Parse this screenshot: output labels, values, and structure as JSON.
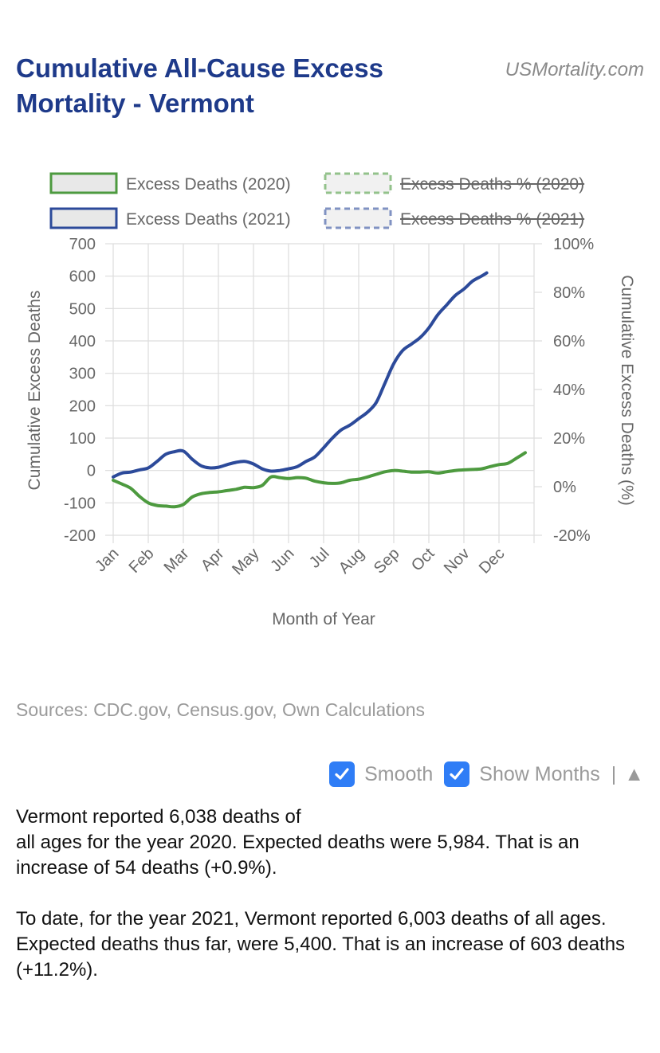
{
  "header": {
    "title": "Cumulative All-Cause Excess Mortality - Vermont",
    "site": "USMortality.com"
  },
  "colors": {
    "green": "#4d9a3f",
    "blue": "#2c4a9a",
    "title": "#1e3a8a"
  },
  "chart_data": {
    "type": "line",
    "xlabel": "Month of Year",
    "ylabel": "Cumulative Excess Deaths",
    "y2label": "Cumulative Excess Deaths (%)",
    "ylim": [
      -200,
      700
    ],
    "y2lim": [
      -20,
      100
    ],
    "yticks": [
      "700",
      "600",
      "500",
      "400",
      "300",
      "200",
      "100",
      "0",
      "-100",
      "-200"
    ],
    "y2ticks": [
      "100%",
      "80%",
      "60%",
      "40%",
      "20%",
      "0%",
      "-20%"
    ],
    "categories": [
      "Jan",
      "Feb",
      "Mar",
      "Apr",
      "May",
      "Jun",
      "Jul",
      "Aug",
      "Sep",
      "Oct",
      "Nov",
      "Dec"
    ],
    "legend": [
      {
        "label": "Excess Deaths (2020)",
        "hidden": false,
        "dashed": false,
        "color": "#4d9a3f"
      },
      {
        "label": "Excess Deaths % (2020)",
        "hidden": true,
        "dashed": true,
        "color": "#4d9a3f"
      },
      {
        "label": "Excess Deaths (2021)",
        "hidden": false,
        "dashed": false,
        "color": "#2c4a9a"
      },
      {
        "label": "Excess Deaths % (2021)",
        "hidden": true,
        "dashed": true,
        "color": "#2c4a9a"
      }
    ],
    "series": [
      {
        "name": "Excess Deaths (2020)",
        "color": "#4d9a3f",
        "x": [
          0,
          0.25,
          0.5,
          0.75,
          1.0,
          1.25,
          1.5,
          1.75,
          2.0,
          2.25,
          2.5,
          2.75,
          3.0,
          3.25,
          3.5,
          3.75,
          4.0,
          4.25,
          4.5,
          4.75,
          5.0,
          5.25,
          5.5,
          5.75,
          6.0,
          6.25,
          6.5,
          6.75,
          7.0,
          7.25,
          7.5,
          7.75,
          8.0,
          8.25,
          8.5,
          8.75,
          9.0,
          9.25,
          9.5,
          9.75,
          10.0,
          10.25,
          10.5,
          10.75,
          11.0,
          11.25,
          11.5,
          11.75
        ],
        "values": [
          -30,
          -42,
          -55,
          -80,
          -100,
          -108,
          -110,
          -112,
          -105,
          -82,
          -72,
          -68,
          -66,
          -62,
          -58,
          -52,
          -53,
          -46,
          -20,
          -22,
          -25,
          -22,
          -24,
          -33,
          -38,
          -40,
          -38,
          -30,
          -27,
          -20,
          -12,
          -4,
          0,
          -2,
          -5,
          -5,
          -4,
          -8,
          -4,
          0,
          2,
          3,
          5,
          12,
          18,
          22,
          38,
          55
        ]
      },
      {
        "name": "Excess Deaths (2021)",
        "color": "#2c4a9a",
        "x": [
          0,
          0.25,
          0.5,
          0.75,
          1.0,
          1.25,
          1.5,
          1.75,
          2.0,
          2.25,
          2.5,
          2.75,
          3.0,
          3.25,
          3.5,
          3.75,
          4.0,
          4.25,
          4.5,
          4.75,
          5.0,
          5.25,
          5.5,
          5.75,
          6.0,
          6.25,
          6.5,
          6.75,
          7.0,
          7.25,
          7.5,
          7.75,
          8.0,
          8.25,
          8.5,
          8.75,
          9.0,
          9.25,
          9.5,
          9.75,
          10.0,
          10.25,
          10.5,
          10.65
        ],
        "values": [
          -20,
          -8,
          -5,
          2,
          8,
          28,
          50,
          58,
          60,
          35,
          15,
          8,
          10,
          18,
          25,
          28,
          20,
          5,
          -2,
          0,
          5,
          12,
          28,
          42,
          70,
          100,
          125,
          140,
          160,
          180,
          210,
          270,
          330,
          370,
          390,
          410,
          440,
          480,
          510,
          540,
          560,
          585,
          600,
          610
        ]
      }
    ]
  },
  "sources": "Sources: CDC.gov, Census.gov, Own Calculations",
  "controls": {
    "smooth_label": "Smooth",
    "show_months_label": "Show Months",
    "separator": "|",
    "collapse_glyph": "▲"
  },
  "summary": {
    "p1_line1": "Vermont reported 6,038 deaths of",
    "p1_line2": "all ages for the year 2020. Expected deaths were 5,984. That is an increase of 54 deaths (+0.9%).",
    "p2": "To date, for the year 2021, Vermont reported 6,003 deaths of all ages. Expected deaths thus far, were 5,400. That is an increase of 603 deaths (+11.2%)."
  }
}
